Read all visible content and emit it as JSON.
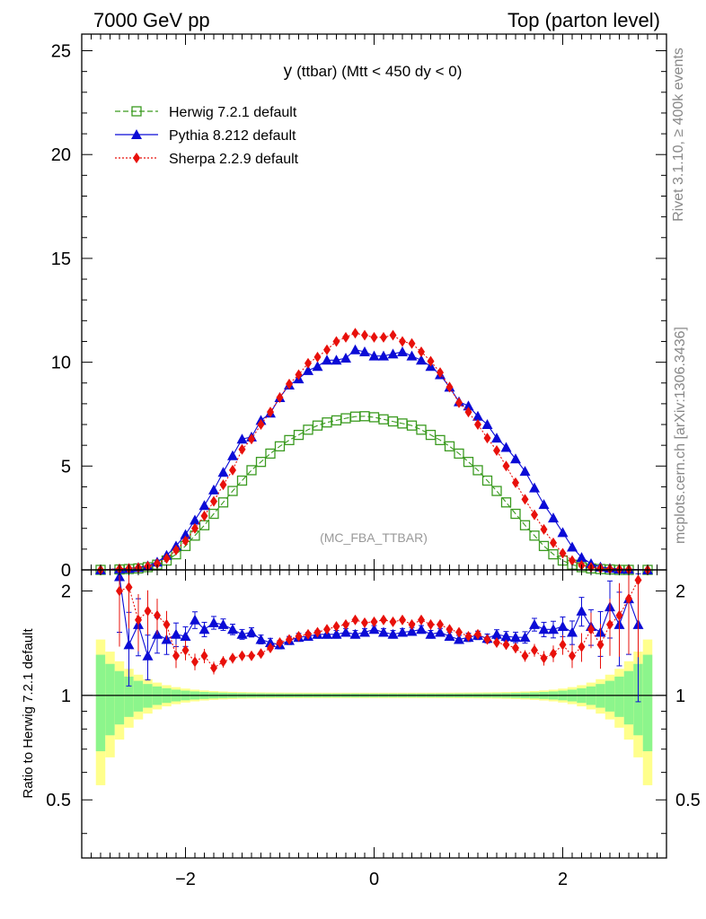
{
  "header": {
    "left": "7000 GeV pp",
    "right": "Top (parton level)"
  },
  "side_labels": {
    "rivet": "Rivet 3.1.10, ≥ 400k events",
    "mcplots": "mcplots.cern.ch [arXiv:1306.3436]"
  },
  "chart_data": [
    {
      "type": "line",
      "title_main": "y",
      "title_rest": "(ttbar) (Mtt < 450 dy < 0)",
      "watermark": "(MC_FBA_TTBAR)",
      "xlim": [
        -3.1,
        3.1
      ],
      "ylim": [
        0,
        25.8
      ],
      "xticks": [
        -2,
        0,
        2
      ],
      "yticks": [
        0,
        5,
        10,
        15,
        20,
        25
      ],
      "legend_placement": "top-left",
      "x": [
        -2.9,
        -2.7,
        -2.6,
        -2.5,
        -2.4,
        -2.3,
        -2.2,
        -2.1,
        -2.0,
        -1.9,
        -1.8,
        -1.7,
        -1.6,
        -1.5,
        -1.4,
        -1.3,
        -1.2,
        -1.1,
        -1.0,
        -0.9,
        -0.8,
        -0.7,
        -0.6,
        -0.5,
        -0.4,
        -0.3,
        -0.2,
        -0.1,
        0.0,
        0.1,
        0.2,
        0.3,
        0.4,
        0.5,
        0.6,
        0.7,
        0.8,
        0.9,
        1.0,
        1.1,
        1.2,
        1.3,
        1.4,
        1.5,
        1.6,
        1.7,
        1.8,
        1.9,
        2.0,
        2.1,
        2.2,
        2.3,
        2.4,
        2.5,
        2.6,
        2.7,
        2.9
      ],
      "series": [
        {
          "name": "Herwig 7.2.1 default",
          "color": "#3a9a1f",
          "marker": "open-square",
          "linestyle": "dashed",
          "values": [
            0.0,
            0.02,
            0.04,
            0.07,
            0.13,
            0.25,
            0.45,
            0.75,
            1.15,
            1.65,
            2.15,
            2.7,
            3.25,
            3.8,
            4.3,
            4.8,
            5.2,
            5.6,
            5.95,
            6.25,
            6.5,
            6.75,
            6.95,
            7.1,
            7.2,
            7.3,
            7.38,
            7.4,
            7.35,
            7.25,
            7.15,
            7.05,
            6.95,
            6.75,
            6.5,
            6.25,
            5.95,
            5.6,
            5.2,
            4.8,
            4.3,
            3.8,
            3.25,
            2.7,
            2.15,
            1.65,
            1.15,
            0.75,
            0.45,
            0.25,
            0.13,
            0.07,
            0.04,
            0.02,
            0.0,
            0.0,
            0.0
          ]
        },
        {
          "name": "Pythia 8.212 default",
          "color": "#0b0bd6",
          "marker": "triangle",
          "linestyle": "solid",
          "values": [
            0.0,
            0.05,
            0.07,
            0.12,
            0.2,
            0.38,
            0.7,
            1.15,
            1.7,
            2.4,
            3.1,
            3.85,
            4.7,
            5.5,
            6.3,
            6.4,
            7.2,
            7.55,
            8.3,
            8.9,
            9.2,
            9.6,
            9.8,
            10.1,
            10.1,
            10.2,
            10.6,
            10.5,
            10.3,
            10.3,
            10.4,
            10.5,
            10.3,
            10.1,
            9.8,
            9.4,
            8.8,
            8.1,
            7.9,
            7.4,
            7.0,
            6.35,
            5.9,
            5.35,
            4.75,
            3.95,
            3.15,
            2.5,
            1.8,
            1.1,
            0.6,
            0.3,
            0.14,
            0.08,
            0.04,
            0.03,
            0.0
          ]
        },
        {
          "name": "Sherpa 2.2.9 default",
          "color": "#e8100b",
          "marker": "diamond",
          "linestyle": "dotted",
          "values": [
            0.0,
            0.05,
            0.07,
            0.11,
            0.18,
            0.3,
            0.55,
            0.95,
            1.4,
            2.0,
            2.6,
            3.3,
            4.1,
            4.8,
            5.8,
            6.3,
            7.0,
            7.6,
            8.3,
            8.95,
            9.4,
            9.95,
            10.25,
            10.6,
            11.0,
            11.2,
            11.4,
            11.3,
            11.2,
            11.2,
            11.3,
            11.0,
            10.9,
            10.5,
            10.05,
            9.5,
            8.8,
            8.05,
            7.6,
            7.0,
            6.35,
            5.75,
            5.0,
            4.2,
            3.4,
            2.65,
            1.95,
            1.3,
            0.8,
            0.45,
            0.22,
            0.12,
            0.07,
            0.05,
            0.03,
            0.02,
            0.0
          ]
        }
      ]
    },
    {
      "type": "line",
      "ylabel": "Ratio to Herwig 7.2.1 default",
      "ylim": [
        0.34,
        2.3
      ],
      "yscale": "log",
      "yticks": [
        0.5,
        1,
        2
      ],
      "xticks": [
        -2,
        0,
        2
      ],
      "reference_band": "green = MC statistical uncertainty, yellow = stat. ⊕ syst.",
      "x": [
        -2.7,
        -2.6,
        -2.5,
        -2.4,
        -2.3,
        -2.2,
        -2.1,
        -2.0,
        -1.9,
        -1.8,
        -1.7,
        -1.6,
        -1.5,
        -1.4,
        -1.3,
        -1.2,
        -1.1,
        -1.0,
        -0.9,
        -0.8,
        -0.7,
        -0.6,
        -0.5,
        -0.4,
        -0.3,
        -0.2,
        -0.1,
        0.0,
        0.1,
        0.2,
        0.3,
        0.4,
        0.5,
        0.6,
        0.7,
        0.8,
        0.9,
        1.0,
        1.1,
        1.2,
        1.3,
        1.4,
        1.5,
        1.6,
        1.7,
        1.8,
        1.9,
        2.0,
        2.1,
        2.2,
        2.3,
        2.4,
        2.5,
        2.6,
        2.7,
        2.8
      ],
      "series": [
        {
          "name": "Pythia 8.212 default",
          "color": "#0b0bd6",
          "values": [
            2.2,
            1.4,
            1.6,
            1.3,
            1.5,
            1.45,
            1.5,
            1.48,
            1.65,
            1.55,
            1.62,
            1.6,
            1.55,
            1.5,
            1.52,
            1.45,
            1.42,
            1.4,
            1.44,
            1.47,
            1.48,
            1.5,
            1.5,
            1.5,
            1.52,
            1.5,
            1.52,
            1.55,
            1.52,
            1.5,
            1.52,
            1.53,
            1.55,
            1.5,
            1.52,
            1.48,
            1.45,
            1.47,
            1.49,
            1.46,
            1.5,
            1.48,
            1.47,
            1.47,
            1.6,
            1.55,
            1.55,
            1.58,
            1.52,
            1.75,
            1.58,
            1.52,
            1.8,
            1.6,
            1.9,
            1.6
          ]
        },
        {
          "name": "Sherpa 2.2.9 default",
          "color": "#e8100b",
          "values": [
            2.0,
            2.05,
            1.65,
            1.75,
            1.7,
            1.6,
            1.3,
            1.35,
            1.25,
            1.3,
            1.2,
            1.25,
            1.28,
            1.3,
            1.3,
            1.32,
            1.37,
            1.42,
            1.45,
            1.48,
            1.5,
            1.52,
            1.55,
            1.58,
            1.6,
            1.65,
            1.62,
            1.63,
            1.65,
            1.63,
            1.65,
            1.6,
            1.65,
            1.6,
            1.6,
            1.55,
            1.52,
            1.48,
            1.5,
            1.45,
            1.42,
            1.4,
            1.37,
            1.3,
            1.35,
            1.28,
            1.32,
            1.4,
            1.3,
            1.38,
            1.55,
            1.4,
            1.6,
            1.7,
            1.9,
            2.15
          ]
        }
      ]
    }
  ]
}
